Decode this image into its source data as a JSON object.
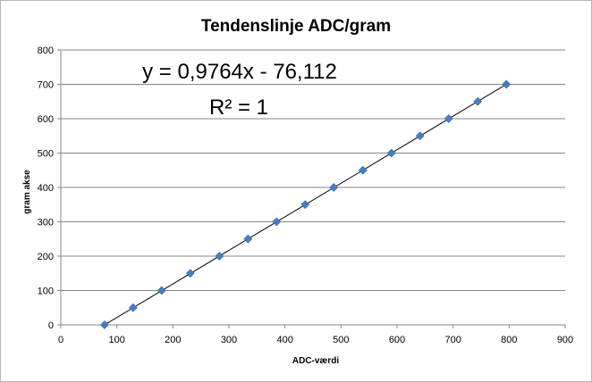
{
  "chart_data": {
    "type": "scatter",
    "title": "Tendenslinje ADC/gram",
    "xlabel": "ADC-værdi",
    "ylabel": "gram akse",
    "xlim": [
      0,
      900
    ],
    "ylim": [
      0,
      800
    ],
    "xticks": [
      "0",
      "100",
      "200",
      "300",
      "400",
      "500",
      "600",
      "700",
      "800",
      "900"
    ],
    "yticks": [
      "0",
      "100",
      "200",
      "300",
      "400",
      "500",
      "600",
      "700",
      "800"
    ],
    "grid": "horizontal",
    "marker_color": "#4a7ebb",
    "trendline": {
      "equation": "y = 0,9764x - 76,112",
      "r_squared": "R² = 1",
      "slope": 0.9764,
      "intercept": -76.112,
      "color": "#000000"
    },
    "series": [
      {
        "points": [
          {
            "x": 78,
            "y": 0
          },
          {
            "x": 129,
            "y": 50
          },
          {
            "x": 180,
            "y": 100
          },
          {
            "x": 231,
            "y": 150
          },
          {
            "x": 283,
            "y": 200
          },
          {
            "x": 334,
            "y": 250
          },
          {
            "x": 385,
            "y": 300
          },
          {
            "x": 436,
            "y": 350
          },
          {
            "x": 487,
            "y": 400
          },
          {
            "x": 539,
            "y": 450
          },
          {
            "x": 590,
            "y": 500
          },
          {
            "x": 641,
            "y": 550
          },
          {
            "x": 692,
            "y": 600
          },
          {
            "x": 744,
            "y": 650
          },
          {
            "x": 795,
            "y": 700
          }
        ]
      }
    ]
  }
}
